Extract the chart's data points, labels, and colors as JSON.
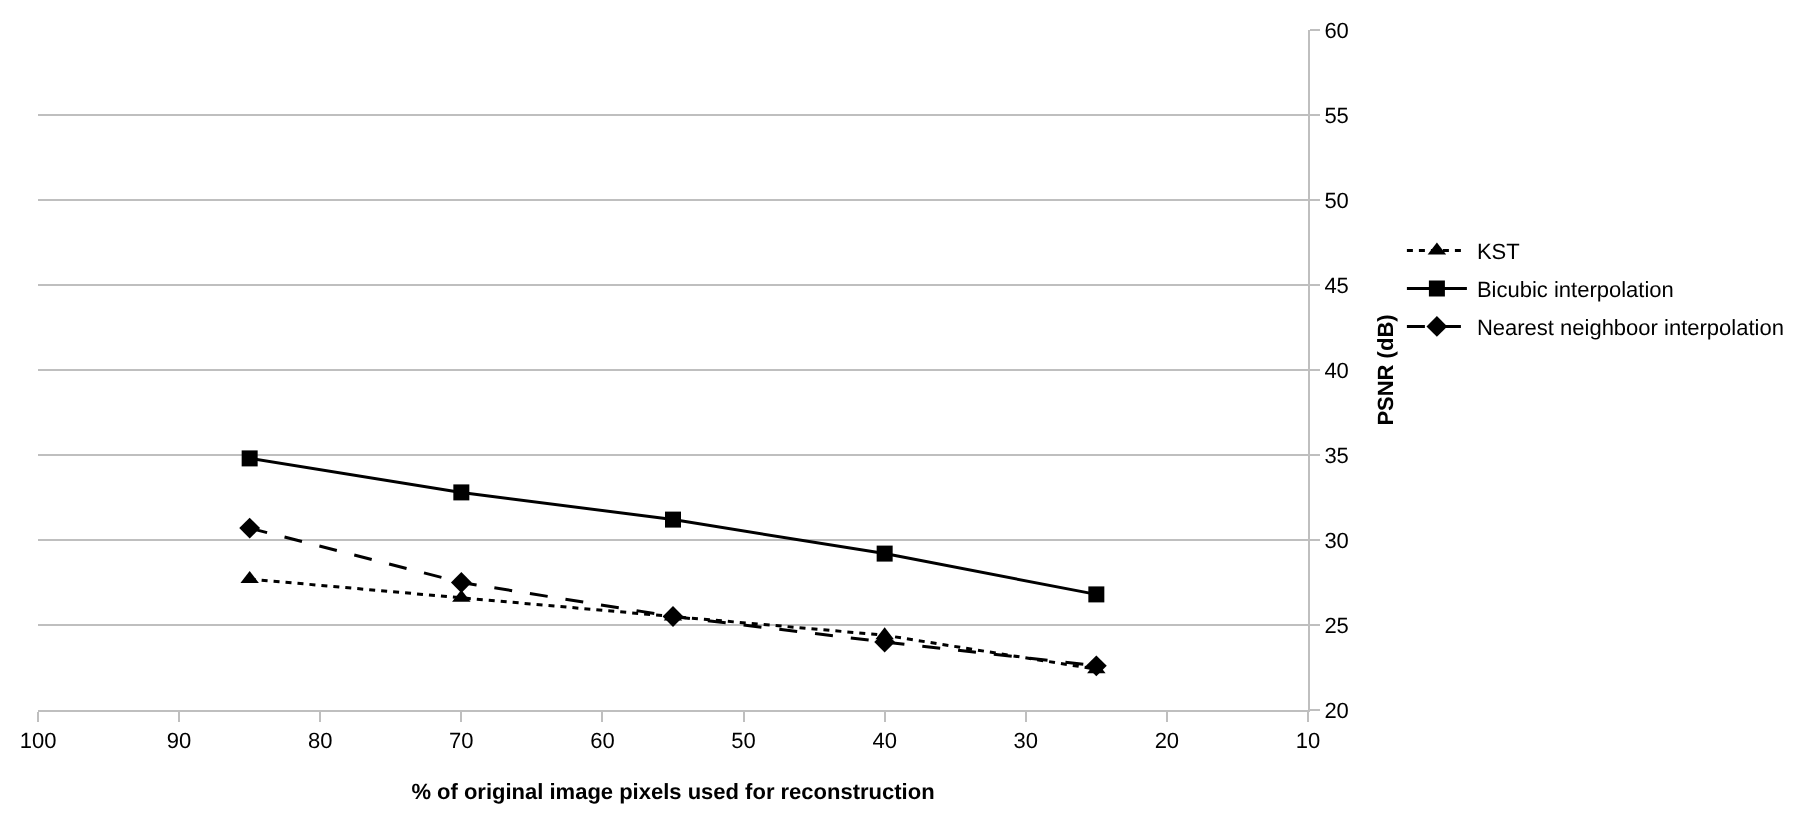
{
  "chart_data": {
    "type": "line",
    "xlabel": "% of original image pixels used for reconstruction",
    "ylabel": "PSNR (dB)",
    "x": [
      85,
      70,
      55,
      40,
      25
    ],
    "series": [
      {
        "name": "KST",
        "color": "#000000",
        "marker": "triangle",
        "line_style": "dotted",
        "values": [
          27.7,
          26.6,
          25.5,
          24.4,
          22.4
        ]
      },
      {
        "name": "Bicubic interpolation",
        "color": "#000000",
        "marker": "square",
        "line_style": "solid",
        "values": [
          34.8,
          32.8,
          31.2,
          29.2,
          26.8
        ]
      },
      {
        "name": "Nearest neighboor interpolation",
        "color": "#000000",
        "marker": "diamond",
        "line_style": "dashed",
        "values": [
          30.7,
          27.5,
          25.5,
          24.0,
          22.6
        ]
      }
    ],
    "xlim": [
      100,
      10
    ],
    "xticks": [
      100,
      90,
      80,
      70,
      60,
      50,
      40,
      30,
      20,
      10
    ],
    "ylim": [
      20,
      60
    ],
    "yticks": [
      20,
      25,
      30,
      35,
      40,
      45,
      50,
      55,
      60
    ],
    "grid": "y",
    "legend": "right"
  }
}
